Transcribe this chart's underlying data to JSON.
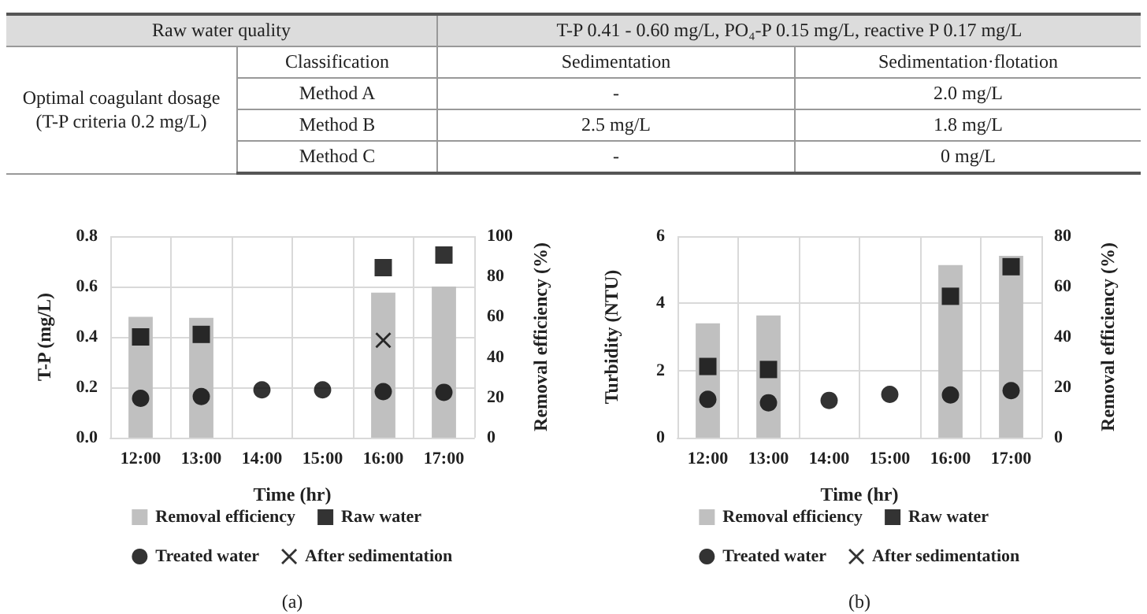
{
  "chart_data": [
    {
      "type": "other",
      "annotations": [
        "Raw water quality",
        "T-P 0.41 - 0.60 mg/L, PO₄-P 0.15 mg/L, reactive P 0.17 mg/L",
        "Optimal coagulant dosage (T-P criteria 0.2 mg/L)",
        "Classification",
        "Sedimentation",
        "Sedimentation·flotation",
        "Method A",
        "-",
        "2.0 mg/L",
        "Method B",
        "2.5 mg/L",
        "1.8 mg/L",
        "Method C",
        "-",
        "0 mg/L"
      ]
    },
    {
      "type": "bar",
      "categories": [
        "12:00",
        "13:00",
        "14:00",
        "15:00",
        "16:00",
        "17:00"
      ],
      "xlabel": "Time (hr)",
      "ylabel": "T-P (mg/L)",
      "y2label": "Removal efficiency (%)",
      "ylim": [
        0,
        0.8
      ],
      "yticks": [
        {
          "value": 0,
          "label": "0.0"
        },
        0.2,
        0.4,
        0.6,
        0.8
      ],
      "y2lim": [
        0,
        100
      ],
      "y2ticks": [
        0,
        20,
        40,
        60,
        80,
        100
      ],
      "grid": true,
      "legend": "bottom",
      "annotations": [
        "(a)"
      ],
      "series": [
        {
          "name": "Removal efficiency",
          "type": "bar",
          "axis": "y2",
          "color": "#c0c0c0",
          "values": [
            60,
            59.5,
            null,
            null,
            72,
            75
          ]
        },
        {
          "name": "Raw water",
          "type": "scatter",
          "marker": "square",
          "color": "#000000",
          "values": [
            0.4,
            0.41,
            null,
            null,
            0.675,
            0.725
          ]
        },
        {
          "name": "Treated water",
          "type": "scatter",
          "marker": "circle",
          "color": "#000000",
          "values": [
            0.156,
            0.163,
            0.19,
            0.19,
            0.183,
            0.18
          ]
        },
        {
          "name": "After sedimentation",
          "type": "scatter",
          "marker": "cross",
          "color": "#000000",
          "values": [
            null,
            null,
            null,
            null,
            0.387,
            null
          ]
        }
      ]
    },
    {
      "type": "bar",
      "categories": [
        "12:00",
        "13:00",
        "14:00",
        "15:00",
        "16:00",
        "17:00"
      ],
      "xlabel": "Time (hr)",
      "ylabel": "Turbidity (NTU)",
      "y2label": "Removal efficiency (%)",
      "ylim": [
        0,
        6
      ],
      "yticks": [
        0,
        2,
        4,
        6
      ],
      "y2lim": [
        0,
        80
      ],
      "y2ticks": [
        0,
        20,
        40,
        60,
        80
      ],
      "grid": true,
      "legend": "bottom",
      "annotations": [
        "(b)"
      ],
      "series": [
        {
          "name": "Removal efficiency",
          "type": "bar",
          "axis": "y2",
          "color": "#c0c0c0",
          "values": [
            45.4,
            48.5,
            null,
            null,
            68.5,
            72.2
          ]
        },
        {
          "name": "Raw water",
          "type": "scatter",
          "marker": "square",
          "color": "#000000",
          "values": [
            2.12,
            2.03,
            null,
            null,
            4.21,
            5.09
          ]
        },
        {
          "name": "Treated water",
          "type": "scatter",
          "marker": "circle",
          "color": "#000000",
          "values": [
            1.14,
            1.04,
            1.11,
            1.29,
            1.27,
            1.4
          ]
        },
        {
          "name": "After sedimentation",
          "type": "scatter",
          "marker": "cross",
          "color": "#000000",
          "values": [
            null,
            null,
            null,
            null,
            null,
            null
          ]
        }
      ]
    }
  ]
}
